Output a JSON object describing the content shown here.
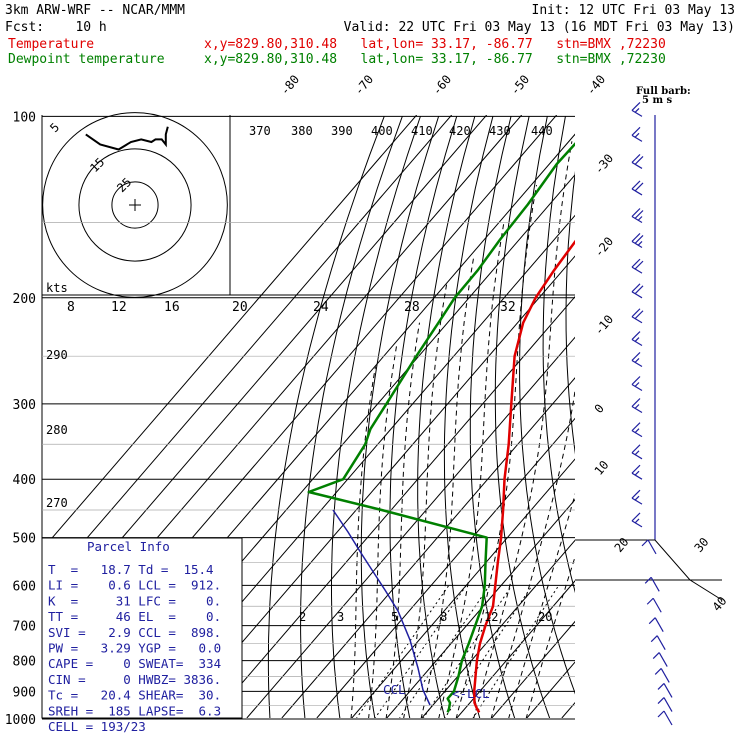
{
  "header": {
    "line1_left": "3km ARW-WRF -- NCAR/MMM",
    "line1_right": "Init: 12 UTC Fri 03 May 13",
    "line2_left": "Fcst:    10 h",
    "line2_right": "Valid: 22 UTC Fri 03 May 13 (16 MDT Fri 03 May 13)",
    "temp_label": "Temperature",
    "dew_label": "Dewpoint temperature",
    "temp_loc": "x,y=829.80,310.48   lat,lon= 33.17, -86.77   stn=BMX ,72230",
    "dew_loc": "x,y=829.80,310.48   lat,lon= 33.17, -86.77   stn=BMX ,72230"
  },
  "colors": {
    "temperature": "#e00000",
    "dewpoint": "#008000",
    "parcel": "#2020a0",
    "barbs": "#2020a0"
  },
  "legend_barb": {
    "title": "Full barb:",
    "value": "5 m s"
  },
  "pressure_levels": [
    "100",
    "200",
    "300",
    "400",
    "500",
    "600",
    "700",
    "800",
    "900",
    "1000"
  ],
  "isotherm_labels": [
    "-80",
    "-70",
    "-60",
    "-50",
    "-40",
    "-30",
    "-20",
    "-10",
    "0",
    "10",
    "20",
    "30",
    "40"
  ],
  "theta_labels": [
    "370",
    "380",
    "390",
    "400",
    "410",
    "420",
    "430",
    "440"
  ],
  "theta_left": [
    "290",
    "280",
    "270"
  ],
  "mixing_labels": [
    "2",
    "3",
    "5",
    "8",
    "12",
    "20"
  ],
  "hodograph": {
    "kts_label": "kts",
    "speed_labels": [
      "8",
      "12",
      "16",
      "20",
      "24",
      "28",
      "32"
    ],
    "ring_labels": [
      "5",
      "15",
      "25"
    ],
    "path": [
      [
        -24,
        28
      ],
      [
        -17,
        24
      ],
      [
        -8,
        22
      ],
      [
        -2,
        25
      ],
      [
        3,
        26
      ],
      [
        8,
        25
      ],
      [
        10,
        26
      ],
      [
        13,
        26
      ],
      [
        15,
        24
      ],
      [
        15,
        28
      ],
      [
        16,
        31
      ]
    ]
  },
  "parcel_info": {
    "title": "Parcel Info",
    "rows": [
      "T  =   18.7 Td =  15.4",
      "LI =    0.6 LCL =  912.",
      "K  =     31 LFC =    0.",
      "TT =     46 EL  =    0.",
      "SVI =   2.9 CCL =  898.",
      "PW =   3.29 YGP =   0.0",
      "CAPE =    0 SWEAT=  334",
      "CIN =     0 HWBZ= 3836.",
      "Tc =   20.4 SHEAR=  30.",
      "SREH =  185 LAPSE=  6.3",
      "CELL = 193/23"
    ]
  },
  "markers": {
    "ccl": "CCL",
    "lcl": "<-LCL"
  },
  "chart_data": {
    "type": "line",
    "title": "",
    "xlabel": "",
    "ylabel": "",
    "y_scale": "log pressure (hPa)",
    "ylim": [
      1000,
      100
    ],
    "x_skew": "skewed temperature (°C)",
    "series": [
      {
        "name": "Temperature",
        "pressure": [
          975,
          960,
          940,
          900,
          850,
          800,
          750,
          700,
          650,
          600,
          550,
          500,
          450,
          400,
          350,
          300,
          250,
          220,
          200,
          180,
          160,
          140,
          120,
          100
        ],
        "temperature": [
          25.0,
          23.3,
          21.3,
          18.4,
          15.1,
          11.6,
          8.3,
          5.4,
          2.8,
          -1.7,
          -6.6,
          -11.8,
          -18.0,
          -25.2,
          -32.6,
          -41.8,
          -52.6,
          -58.4,
          -61.0,
          -62.5,
          -63.6,
          -64.2,
          -65.2,
          -66.7
        ]
      },
      {
        "name": "Dewpoint temperature",
        "pressure": [
          975,
          960,
          940,
          925,
          900,
          850,
          800,
          750,
          700,
          650,
          600,
          550,
          500,
          450,
          420,
          400,
          350,
          330,
          300,
          250,
          220,
          200,
          180,
          160,
          140,
          120,
          100
        ],
        "dewpoint": [
          16.0,
          15.4,
          14.3,
          12.6,
          12.6,
          10.2,
          7.3,
          5.1,
          2.5,
          -0.3,
          -4.7,
          -10.1,
          -15.9,
          -52.7,
          -78.0,
          -71.3,
          -73.6,
          -75.9,
          -77.5,
          -80.7,
          -82.6,
          -84.1,
          -84.3,
          -85.5,
          -86.2,
          -87.9,
          -87.2
        ]
      }
    ],
    "wind_barbs": [
      {
        "pressure": 100,
        "speed_ms": 15
      },
      {
        "pressure": 110,
        "speed_ms": 15
      },
      {
        "pressure": 122,
        "speed_ms": 20
      },
      {
        "pressure": 135,
        "speed_ms": 20
      },
      {
        "pressure": 150,
        "speed_ms": 25
      },
      {
        "pressure": 165,
        "speed_ms": 25
      },
      {
        "pressure": 182,
        "speed_ms": 20
      },
      {
        "pressure": 200,
        "speed_ms": 20
      },
      {
        "pressure": 220,
        "speed_ms": 20
      },
      {
        "pressure": 240,
        "speed_ms": 15
      },
      {
        "pressure": 260,
        "speed_ms": 15
      },
      {
        "pressure": 285,
        "speed_ms": 15
      },
      {
        "pressure": 310,
        "speed_ms": 15
      },
      {
        "pressure": 340,
        "speed_ms": 15
      },
      {
        "pressure": 370,
        "speed_ms": 15
      },
      {
        "pressure": 400,
        "speed_ms": 15
      },
      {
        "pressure": 440,
        "speed_ms": 15
      },
      {
        "pressure": 480,
        "speed_ms": 15
      },
      {
        "pressure": 520,
        "speed_ms": 10
      },
      {
        "pressure": 600,
        "speed_ms": 10
      },
      {
        "pressure": 650,
        "speed_ms": 10
      },
      {
        "pressure": 700,
        "speed_ms": 10
      },
      {
        "pressure": 750,
        "speed_ms": 10
      },
      {
        "pressure": 800,
        "speed_ms": 10
      },
      {
        "pressure": 850,
        "speed_ms": 10
      },
      {
        "pressure": 900,
        "speed_ms": 5
      },
      {
        "pressure": 950,
        "speed_ms": 5
      },
      {
        "pressure": 1000,
        "speed_ms": 5
      }
    ]
  }
}
